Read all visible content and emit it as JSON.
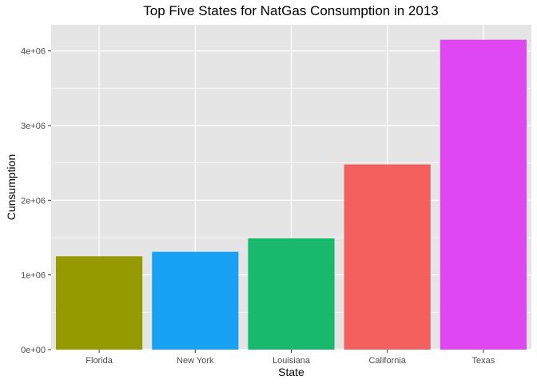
{
  "chart_data": {
    "type": "bar",
    "title": "Top Five States for NatGas Consumption in 2013",
    "xlabel": "State",
    "ylabel": "Cunsumption",
    "categories": [
      "Florida",
      "New York",
      "Louisiana",
      "California",
      "Texas"
    ],
    "values": [
      1250000,
      1310000,
      1490000,
      2480000,
      4150000
    ],
    "colors": [
      "#949A00",
      "#19A2F4",
      "#19B96D",
      "#F4605E",
      "#DE47F1"
    ],
    "ylim": [
      0,
      4350000
    ],
    "yticks": [
      0,
      1000000,
      2000000,
      3000000,
      4000000
    ],
    "ytick_labels": [
      "0e+00",
      "1e+06",
      "2e+06",
      "3e+06",
      "4e+06"
    ],
    "grid": true,
    "legend": "none",
    "panel_background": "#E5E5E5",
    "grid_color": "#FFFFFF"
  }
}
